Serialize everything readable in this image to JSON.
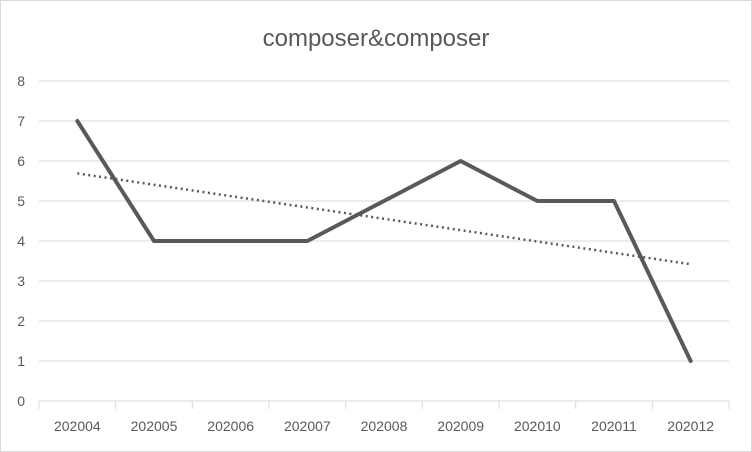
{
  "chart_data": {
    "type": "line",
    "title": "composer&composer",
    "xlabel": "",
    "ylabel": "",
    "categories": [
      "202004",
      "202005",
      "202006",
      "202007",
      "202008",
      "202009",
      "202010",
      "202011",
      "202012"
    ],
    "series": [
      {
        "values": [
          7,
          4,
          4,
          4,
          5,
          6,
          5,
          5,
          1
        ],
        "color": "#595959",
        "style": "solid"
      }
    ],
    "trendline": {
      "type": "linear",
      "style": "dotted",
      "color": "#595959",
      "start": 5.69,
      "end": 3.42
    },
    "ylim": [
      0,
      8
    ],
    "yticks": [
      "0",
      "1",
      "2",
      "3",
      "4",
      "5",
      "6",
      "7",
      "8"
    ],
    "grid": true,
    "legend": "none"
  }
}
